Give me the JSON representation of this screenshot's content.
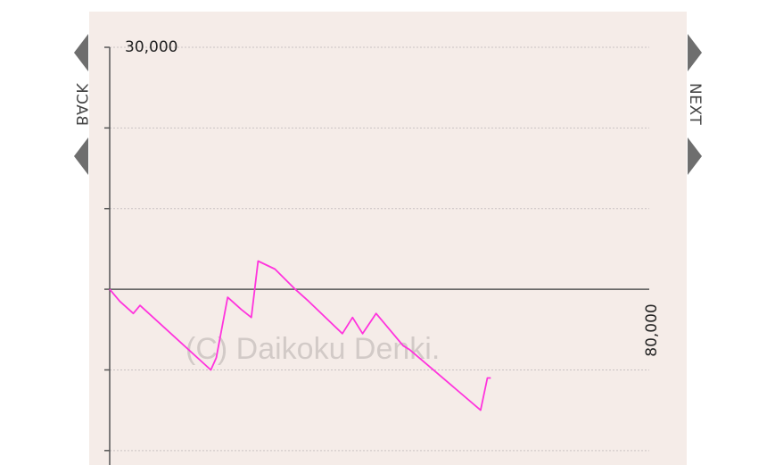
{
  "nav": {
    "back_label": "BACK",
    "next_label": "NEXT"
  },
  "watermark": "(C) Daikoku Denki.",
  "colors": {
    "panel_bg": "#f5ece8",
    "line": "#ff33dd",
    "axis": "#555555",
    "grid": "#c9c2c2",
    "nav_arrow": "#6e6e6e"
  },
  "chart_data": {
    "type": "line",
    "title": "",
    "xlabel": "",
    "ylabel": "",
    "y_top_label": "30,000",
    "x_end_label": "80,000",
    "ylim": [
      -2500,
      3000
    ],
    "xlim": [
      0,
      8000
    ],
    "y_ticks": [
      3000,
      2000,
      1000,
      0,
      -1000,
      -2000
    ],
    "grid": true,
    "series": [
      {
        "name": "",
        "x": [
          0,
          150,
          350,
          450,
          1500,
          1580,
          1750,
          1950,
          2100,
          2200,
          2450,
          2750,
          2950,
          3450,
          3600,
          3750,
          3950,
          4350,
          4450,
          5500,
          5600,
          5650
        ],
        "y": [
          0,
          -150,
          -300,
          -200,
          -1000,
          -850,
          -100,
          -250,
          -350,
          350,
          250,
          0,
          -150,
          -550,
          -350,
          -550,
          -300,
          -700,
          -750,
          -1500,
          -1100,
          -1100
        ]
      }
    ]
  }
}
